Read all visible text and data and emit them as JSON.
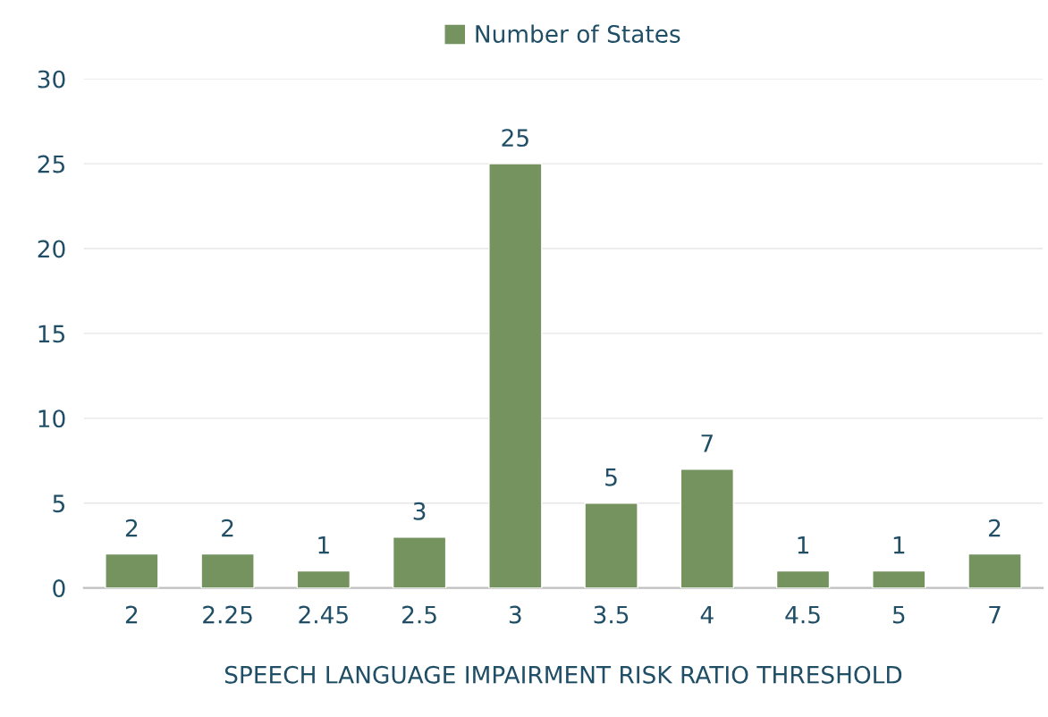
{
  "chart_data": {
    "type": "bar",
    "xlabel": "SPEECH LANGUAGE IMPAIRMENT RISK RATIO THRESHOLD",
    "categories": [
      "2",
      "2.25",
      "2.45",
      "2.5",
      "3",
      "3.5",
      "4",
      "4.5",
      "5",
      "7"
    ],
    "series": [
      {
        "name": "Number of States",
        "color": "#74935f",
        "values": [
          2,
          2,
          1,
          3,
          25,
          5,
          7,
          1,
          1,
          2
        ]
      }
    ],
    "ylim": [
      0,
      30
    ],
    "yticks": [
      0,
      5,
      10,
      15,
      20,
      25,
      30
    ],
    "grid": "y",
    "legend": "top",
    "data_labels": true
  }
}
